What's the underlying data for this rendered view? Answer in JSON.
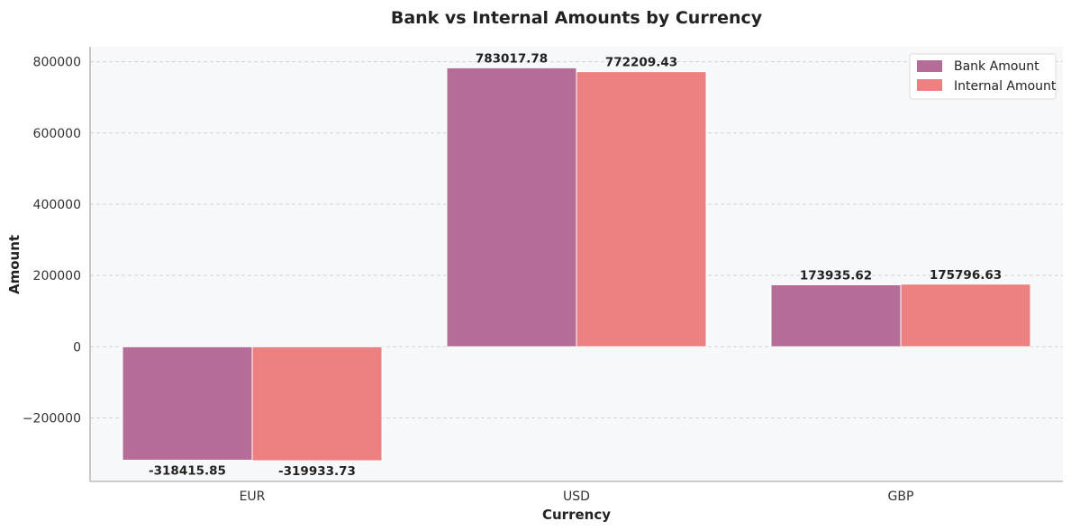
{
  "chart_data": {
    "type": "bar",
    "title": "Bank vs Internal Amounts by Currency",
    "xlabel": "Currency",
    "ylabel": "Amount",
    "categories": [
      "EUR",
      "USD",
      "GBP"
    ],
    "series": [
      {
        "name": "Bank Amount",
        "color": "#b56c96",
        "values": [
          -318415.85,
          783017.78,
          173935.62
        ]
      },
      {
        "name": "Internal Amount",
        "color": "#ed8080",
        "values": [
          -319933.73,
          772209.43,
          175796.63
        ]
      }
    ],
    "data_labels": [
      [
        "-318415.85",
        "783017.78",
        "173935.62"
      ],
      [
        "-319933.73",
        "772209.43",
        "175796.63"
      ]
    ],
    "ylim": [
      -378000,
      842000
    ],
    "yticks": [
      -200000,
      0,
      200000,
      400000,
      600000,
      800000
    ],
    "ytick_labels": [
      "−200000",
      "0",
      "200000",
      "400000",
      "600000",
      "800000"
    ],
    "grid": true,
    "legend_position": "top-right",
    "plot_background": "#f7f8fa"
  }
}
